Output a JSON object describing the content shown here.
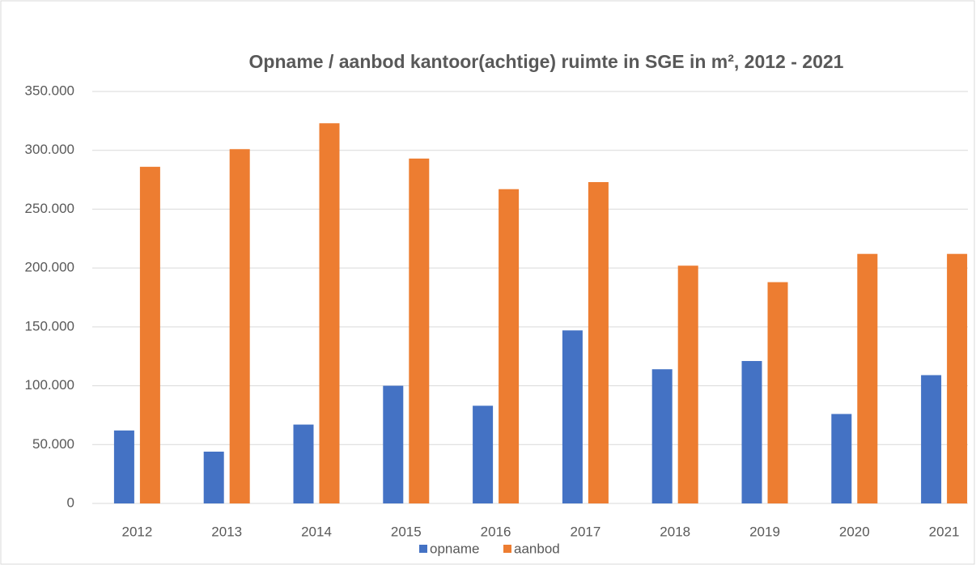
{
  "chart_data": {
    "type": "bar",
    "title": "Opname / aanbod kantoor(achtige) ruimte in SGE in m², 2012 - 2021",
    "categories": [
      "2012",
      "2013",
      "2014",
      "2015",
      "2016",
      "2017",
      "2018",
      "2019",
      "2020",
      "2021"
    ],
    "series": [
      {
        "name": "opname",
        "color": "#4472c4",
        "values": [
          62000,
          44000,
          67000,
          100000,
          83000,
          147000,
          114000,
          121000,
          76000,
          109000
        ]
      },
      {
        "name": "aanbod",
        "color": "#ed7d31",
        "values": [
          286000,
          301000,
          323000,
          293000,
          267000,
          273000,
          202000,
          188000,
          212000,
          212000
        ]
      }
    ],
    "ylim": [
      0,
      350000
    ],
    "yticks": [
      0,
      {
        "value": 50000,
        "label": "50.000"
      },
      {
        "value": 100000,
        "label": "100.000"
      },
      {
        "value": 150000,
        "label": "150.000"
      },
      {
        "value": 200000,
        "label": "200.000"
      },
      {
        "value": 250000,
        "label": "250.000"
      },
      {
        "value": 300000,
        "label": "300.000"
      },
      {
        "value": 350000,
        "label": "350.000"
      }
    ],
    "grid": true,
    "legend": "bottom"
  }
}
